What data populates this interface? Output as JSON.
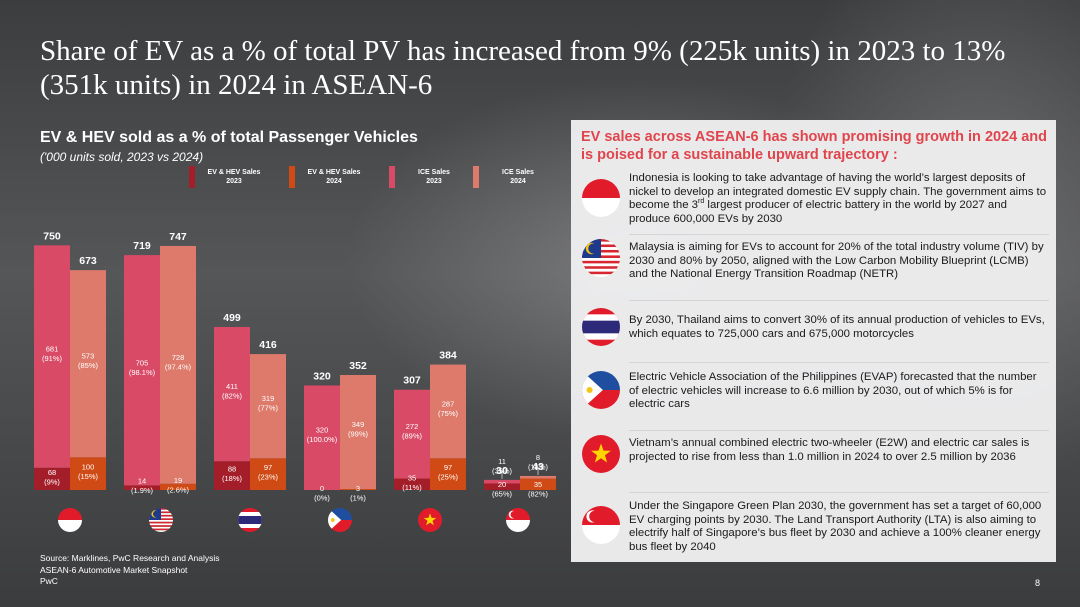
{
  "title": "Share of EV as a % of total PV has increased from 9% (225k units) in 2023 to 13% (351k units) in 2024 in ASEAN-6",
  "chart": {
    "title": "EV & HEV sold as a % of total Passenger Vehicles",
    "subtitle": "('000 units sold, 2023 vs 2024)"
  },
  "chart_data": {
    "type": "bar",
    "stacked": true,
    "legend_position": "top",
    "series": [
      {
        "name": "EV & HEV Sales 2023",
        "color": "#a41e2a"
      },
      {
        "name": "EV & HEV Sales 2024",
        "color": "#cf4a14"
      },
      {
        "name": "ICE Sales 2023",
        "color": "#d94a67"
      },
      {
        "name": "ICE Sales 2024",
        "color": "#dd7a6b"
      }
    ],
    "categories": [
      "Indonesia",
      "Malaysia",
      "Thailand",
      "Philippines",
      "Vietnam",
      "Singapore"
    ],
    "bars": [
      {
        "country": "Indonesia",
        "year": "2023",
        "total": "750",
        "ice": 681,
        "ice_label": "681\n(91%)",
        "ev": 68,
        "ev_label": "68\n(9%)"
      },
      {
        "country": "Indonesia",
        "year": "2024",
        "total": "673",
        "ice": 573,
        "ice_label": "573\n(85%)",
        "ev": 100,
        "ev_label": "100\n(15%)"
      },
      {
        "country": "Malaysia",
        "year": "2023",
        "total": "719",
        "ice": 705,
        "ice_label": "705\n(98.1%)",
        "ev": 14,
        "ev_label": "14\n(1.9%)"
      },
      {
        "country": "Malaysia",
        "year": "2024",
        "total": "747",
        "ice": 728,
        "ice_label": "728\n(97.4%)",
        "ev": 19,
        "ev_label": "19\n(2.6%)"
      },
      {
        "country": "Thailand",
        "year": "2023",
        "total": "499",
        "ice": 411,
        "ice_label": "411\n(82%)",
        "ev": 88,
        "ev_label": "88\n(18%)"
      },
      {
        "country": "Thailand",
        "year": "2024",
        "total": "416",
        "ice": 319,
        "ice_label": "319\n(77%)",
        "ev": 97,
        "ev_label": "97\n(23%)"
      },
      {
        "country": "Philippines",
        "year": "2023",
        "total": "320",
        "ice": 320,
        "ice_label": "320\n(100.0%)",
        "ev": 0,
        "ev_label": "0\n(0%)"
      },
      {
        "country": "Philippines",
        "year": "2024",
        "total": "352",
        "ice": 349,
        "ice_label": "349\n(99%)",
        "ev": 3,
        "ev_label": "3\n(1%)"
      },
      {
        "country": "Vietnam",
        "year": "2023",
        "total": "307",
        "ice": 272,
        "ice_label": "272\n(89%)",
        "ev": 35,
        "ev_label": "35\n(11%)"
      },
      {
        "country": "Vietnam",
        "year": "2024",
        "total": "384",
        "ice": 287,
        "ice_label": "287\n(75%)",
        "ev": 97,
        "ev_label": "97\n(25%)"
      },
      {
        "country": "Singapore",
        "year": "2023",
        "total": "30",
        "ice": 11,
        "ice_label": "11\n(35%)",
        "ev": 20,
        "ev_label": "20\n(65%)"
      },
      {
        "country": "Singapore",
        "year": "2024",
        "total": "43",
        "ice": 8,
        "ice_label": "8\n(18%)",
        "ev": 35,
        "ev_label": "35\n(82%)"
      }
    ]
  },
  "panel": {
    "heading": "EV sales across ASEAN-6 has shown promising growth in 2024 and is poised for a sustainable upward trajectory :",
    "items": [
      {
        "flag": "indonesia-flag-icon",
        "pre": "Indonesia is looking to take advantage of having the world’s largest deposits of nickel to develop an integrated domestic EV supply chain. The government aims to become the 3",
        "sup": "rd",
        "post": " largest producer of electric battery in the world by 2027 and produce 600,000 EVs by 2030"
      },
      {
        "flag": "malaysia-flag-icon",
        "pre": "Malaysia is aiming for EVs to account for 20% of the total industry volume (TIV) by 2030 and 80% by 2050, aligned with the Low Carbon Mobility Blueprint (LCMB) and the National Energy Transition Roadmap (NETR)"
      },
      {
        "flag": "thailand-flag-icon",
        "pre": "By 2030, Thailand aims to convert 30% of its annual production of vehicles to EVs, which equates to 725,000 cars and 675,000 motorcycles"
      },
      {
        "flag": "philippines-flag-icon",
        "pre": "Electric Vehicle Association of the Philippines (EVAP) forecasted that the number of electric vehicles will increase to 6.6 million by 2030, out of which 5% is for electric cars"
      },
      {
        "flag": "vietnam-flag-icon",
        "pre": "Vietnam’s annual combined electric two-wheeler (E2W) and electric car sales is projected to rise from less than 1.0 million in 2024 to over 2.5 million by 2036"
      },
      {
        "flag": "singapore-flag-icon",
        "pre": "Under the Singapore Green Plan 2030, the government has set a target of 60,000 EV charging points by 2030. The Land Transport Authority (LTA) is also aiming to electrify half of Singapore’s bus fleet by 2030 and achieve a 100% cleaner energy bus fleet by 2040"
      }
    ]
  },
  "footer": {
    "line1": "Source: Marklines, PwC Research and Analysis",
    "line2": "ASEAN-6 Automotive Market Snapshot",
    "line3": "PwC"
  },
  "page_number": "8"
}
